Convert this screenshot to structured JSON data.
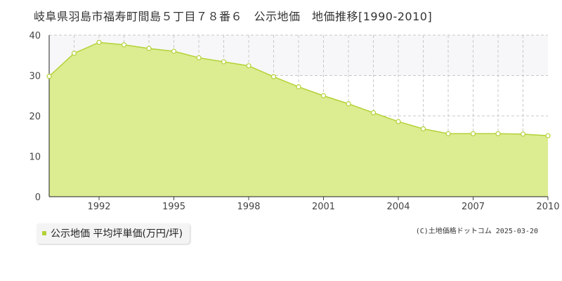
{
  "title": "岐阜県羽島市福寿町間島５丁目７８番６　公示地価　地価推移[1990-2010]",
  "legend": {
    "label": "公示地価 平均坪単価(万円/坪)"
  },
  "credit": "(C)土地価格ドットコム 2025-03-20",
  "colors": {
    "fill": "#dcec91",
    "line": "#b2d235",
    "band": "#f7f7f9",
    "grid": "#c8c8c8"
  },
  "chart_data": {
    "type": "area",
    "title": "岐阜県羽島市福寿町間島５丁目７８番６　公示地価　地価推移[1990-2010]",
    "xlabel": "",
    "ylabel": "",
    "x": [
      1990,
      1991,
      1992,
      1993,
      1994,
      1995,
      1996,
      1997,
      1998,
      1999,
      2000,
      2001,
      2002,
      2003,
      2004,
      2005,
      2006,
      2007,
      2008,
      2009,
      2010
    ],
    "series": [
      {
        "name": "公示地価 平均坪単価(万円/坪)",
        "values": [
          29.8,
          35.5,
          38.2,
          37.6,
          36.7,
          36.0,
          34.4,
          33.4,
          32.4,
          29.7,
          27.2,
          25.0,
          23.0,
          20.8,
          18.6,
          16.8,
          15.6,
          15.6,
          15.6,
          15.5,
          15.1
        ]
      }
    ],
    "xlim": [
      1990,
      2010
    ],
    "ylim": [
      0,
      40
    ],
    "yticks": [
      0,
      10,
      20,
      30,
      40
    ],
    "xticks": [
      1992,
      1995,
      1998,
      2001,
      2004,
      2007,
      2010
    ],
    "grid": true,
    "band": [
      30,
      40
    ],
    "legend_position": "bottom-left"
  }
}
